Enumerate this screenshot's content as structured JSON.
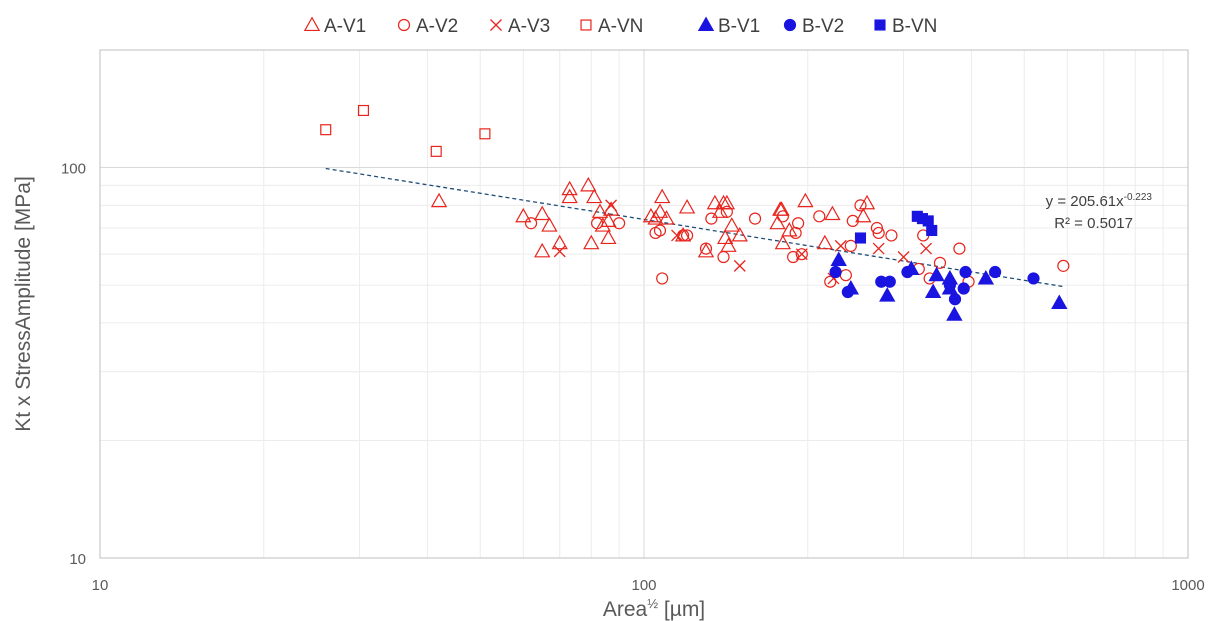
{
  "chart_data": {
    "type": "scatter",
    "x_scale": "log",
    "y_scale": "log",
    "xlim": [
      10,
      1000
    ],
    "ylim": [
      10,
      200
    ],
    "xlabel_base": "Area",
    "xlabel_sup": "½",
    "xlabel_unit": " [µm]",
    "ylabel": "Kt x StressAmplitude [MPa]",
    "x_ticks": [
      10,
      100,
      1000
    ],
    "y_ticks": [
      10,
      100
    ],
    "x_tick_labels": [
      "10",
      "100",
      "1000"
    ],
    "y_tick_labels": [
      "10",
      "100"
    ],
    "grid": true,
    "legend_position": "top",
    "series": [
      {
        "name": "A-V1",
        "marker": "triangle-open",
        "color": "#e8241c",
        "points": [
          [
            42,
            82
          ],
          [
            60,
            75
          ],
          [
            65,
            76
          ],
          [
            67,
            71
          ],
          [
            65,
            61
          ],
          [
            70,
            64
          ],
          [
            73,
            88
          ],
          [
            73,
            84
          ],
          [
            79,
            90
          ],
          [
            80,
            64
          ],
          [
            81,
            84
          ],
          [
            83,
            77
          ],
          [
            84,
            71
          ],
          [
            86,
            73
          ],
          [
            86,
            66
          ],
          [
            87,
            78
          ],
          [
            103,
            75
          ],
          [
            105,
            74
          ],
          [
            107,
            77
          ],
          [
            108,
            84
          ],
          [
            110,
            74
          ],
          [
            118,
            67
          ],
          [
            120,
            79
          ],
          [
            130,
            61
          ],
          [
            135,
            81
          ],
          [
            138,
            77
          ],
          [
            140,
            81
          ],
          [
            141,
            66
          ],
          [
            142,
            81
          ],
          [
            143,
            63
          ],
          [
            145,
            71
          ],
          [
            150,
            67
          ],
          [
            176,
            72
          ],
          [
            178,
            78
          ],
          [
            179,
            78
          ],
          [
            180,
            64
          ],
          [
            185,
            69
          ],
          [
            198,
            82
          ],
          [
            215,
            64
          ],
          [
            222,
            76
          ],
          [
            253,
            75
          ],
          [
            257,
            81
          ]
        ]
      },
      {
        "name": "A-V2",
        "marker": "circle-open",
        "color": "#e8241c",
        "points": [
          [
            62,
            72
          ],
          [
            82,
            72
          ],
          [
            90,
            72
          ],
          [
            105,
            68
          ],
          [
            107,
            69
          ],
          [
            108,
            52
          ],
          [
            118,
            67
          ],
          [
            120,
            67
          ],
          [
            130,
            62
          ],
          [
            133,
            74
          ],
          [
            140,
            59
          ],
          [
            142,
            77
          ],
          [
            160,
            74
          ],
          [
            180,
            75
          ],
          [
            188,
            59
          ],
          [
            190,
            68
          ],
          [
            192,
            72
          ],
          [
            195,
            60
          ],
          [
            210,
            75
          ],
          [
            220,
            51
          ],
          [
            235,
            53
          ],
          [
            240,
            63
          ],
          [
            242,
            73
          ],
          [
            250,
            80
          ],
          [
            268,
            70
          ],
          [
            270,
            68
          ],
          [
            285,
            67
          ],
          [
            320,
            55
          ],
          [
            326,
            67
          ],
          [
            335,
            52
          ],
          [
            350,
            57
          ],
          [
            380,
            62
          ],
          [
            395,
            51
          ],
          [
            590,
            56
          ]
        ]
      },
      {
        "name": "A-V3",
        "marker": "x",
        "color": "#e8241c",
        "points": [
          [
            70,
            61
          ],
          [
            87,
            80
          ],
          [
            115,
            67
          ],
          [
            150,
            56
          ],
          [
            195,
            60
          ],
          [
            223,
            52
          ],
          [
            230,
            63
          ],
          [
            270,
            62
          ],
          [
            300,
            59
          ],
          [
            330,
            62
          ]
        ]
      },
      {
        "name": "A-VN",
        "marker": "square-open",
        "color": "#e8241c",
        "points": [
          [
            26,
            125
          ],
          [
            30.5,
            140
          ],
          [
            41.5,
            110
          ],
          [
            51,
            122
          ]
        ]
      },
      {
        "name": "B-V1",
        "marker": "triangle-filled",
        "color": "#1a14e0",
        "points": [
          [
            228,
            58
          ],
          [
            240,
            49
          ],
          [
            280,
            47
          ],
          [
            310,
            55
          ],
          [
            340,
            48
          ],
          [
            345,
            53
          ],
          [
            365,
            52
          ],
          [
            365,
            49
          ],
          [
            372,
            42
          ],
          [
            425,
            52
          ],
          [
            580,
            45
          ]
        ]
      },
      {
        "name": "B-V2",
        "marker": "circle-filled",
        "color": "#1a14e0",
        "points": [
          [
            225,
            54
          ],
          [
            237,
            48
          ],
          [
            273,
            51
          ],
          [
            283,
            51
          ],
          [
            305,
            54
          ],
          [
            365,
            50
          ],
          [
            373,
            46
          ],
          [
            387,
            49
          ],
          [
            390,
            54
          ],
          [
            442,
            54
          ],
          [
            520,
            52
          ]
        ]
      },
      {
        "name": "B-VN",
        "marker": "square-filled",
        "color": "#1a14e0",
        "points": [
          [
            250,
            66
          ],
          [
            318,
            75
          ],
          [
            325,
            74
          ],
          [
            333,
            73
          ],
          [
            338,
            69
          ]
        ]
      }
    ],
    "trendline": {
      "type": "power",
      "coef": 205.61,
      "exp": -0.223,
      "x_range": [
        26,
        590
      ],
      "color": "#1f4e79",
      "style": "dashed"
    },
    "equation_text": "y = 205.61x",
    "equation_exp": "-0.223",
    "r2_text": "R² = 0.5017"
  }
}
